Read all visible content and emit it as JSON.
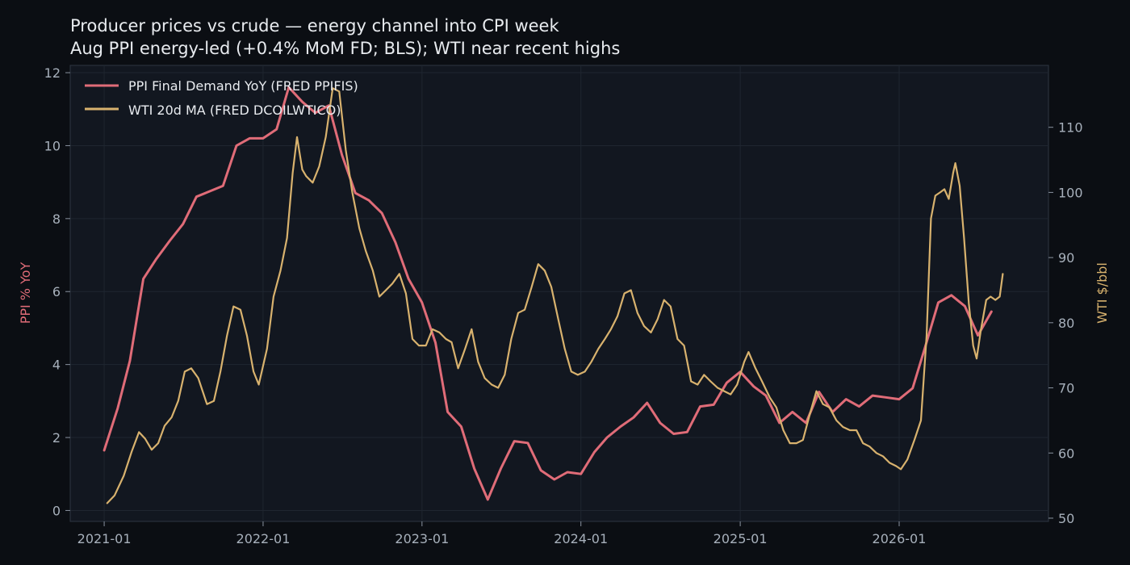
{
  "chart_data": {
    "type": "line",
    "title": "Producer prices vs crude — energy channel into CPI week",
    "subtitle": "Aug PPI energy-led (+0.4% MoM FD; BLS); WTI near recent highs",
    "x_axis": {
      "type": "date",
      "range": [
        "2020-10-15",
        "2026-12-10"
      ],
      "ticks": [
        "2021-01",
        "2022-01",
        "2023-01",
        "2024-01",
        "2025-01",
        "2026-01"
      ]
    },
    "y_left": {
      "label": "PPI % YoY",
      "range": [
        -0.3,
        12.2
      ],
      "ticks": [
        0,
        2,
        4,
        6,
        8,
        10,
        12
      ]
    },
    "y_right": {
      "label": "WTI $/bbl",
      "range": [
        49.5,
        119.5
      ],
      "ticks": [
        50,
        60,
        70,
        80,
        90,
        100,
        110
      ]
    },
    "grid": true,
    "legend_position": "top-left",
    "series": [
      {
        "name": "PPI Final Demand YoY (FRED PPIFIS)",
        "axis": "left",
        "color": "#e06c78",
        "points": [
          [
            "2021-01-01",
            1.65
          ],
          [
            "2021-02-01",
            2.8
          ],
          [
            "2021-03-01",
            4.1
          ],
          [
            "2021-04-01",
            6.35
          ],
          [
            "2021-05-01",
            6.9
          ],
          [
            "2021-06-01",
            7.4
          ],
          [
            "2021-07-01",
            7.85
          ],
          [
            "2021-08-01",
            8.6
          ],
          [
            "2021-09-01",
            8.75
          ],
          [
            "2021-10-01",
            8.9
          ],
          [
            "2021-11-01",
            10.0
          ],
          [
            "2021-12-01",
            10.2
          ],
          [
            "2022-01-01",
            10.2
          ],
          [
            "2022-02-01",
            10.45
          ],
          [
            "2022-03-01",
            11.6
          ],
          [
            "2022-04-01",
            11.2
          ],
          [
            "2022-05-01",
            10.9
          ],
          [
            "2022-06-01",
            11.1
          ],
          [
            "2022-07-01",
            9.75
          ],
          [
            "2022-08-01",
            8.7
          ],
          [
            "2022-09-01",
            8.5
          ],
          [
            "2022-10-01",
            8.15
          ],
          [
            "2022-11-01",
            7.35
          ],
          [
            "2022-12-01",
            6.35
          ],
          [
            "2023-01-01",
            5.7
          ],
          [
            "2023-02-01",
            4.6
          ],
          [
            "2023-03-01",
            2.7
          ],
          [
            "2023-04-01",
            2.3
          ],
          [
            "2023-05-01",
            1.15
          ],
          [
            "2023-06-01",
            0.3
          ],
          [
            "2023-07-01",
            1.15
          ],
          [
            "2023-08-01",
            1.9
          ],
          [
            "2023-09-01",
            1.85
          ],
          [
            "2023-10-01",
            1.1
          ],
          [
            "2023-11-01",
            0.85
          ],
          [
            "2023-12-01",
            1.05
          ],
          [
            "2024-01-01",
            1.0
          ],
          [
            "2024-02-01",
            1.6
          ],
          [
            "2024-03-01",
            2.0
          ],
          [
            "2024-04-01",
            2.3
          ],
          [
            "2024-05-01",
            2.55
          ],
          [
            "2024-06-01",
            2.95
          ],
          [
            "2024-07-01",
            2.4
          ],
          [
            "2024-08-01",
            2.1
          ],
          [
            "2024-09-01",
            2.15
          ],
          [
            "2024-10-01",
            2.85
          ],
          [
            "2024-11-01",
            2.9
          ],
          [
            "2024-12-01",
            3.5
          ],
          [
            "2025-01-01",
            3.8
          ],
          [
            "2025-02-01",
            3.4
          ],
          [
            "2025-03-01",
            3.15
          ],
          [
            "2025-04-01",
            2.4
          ],
          [
            "2025-05-01",
            2.7
          ],
          [
            "2025-06-01",
            2.4
          ],
          [
            "2025-07-01",
            3.25
          ],
          [
            "2025-08-01",
            2.7
          ],
          [
            "2025-09-01",
            3.05
          ],
          [
            "2025-10-01",
            2.85
          ],
          [
            "2025-11-01",
            3.15
          ],
          [
            "2025-12-01",
            3.1
          ],
          [
            "2026-01-01",
            3.05
          ],
          [
            "2026-02-01",
            3.35
          ],
          [
            "2026-03-01",
            4.45
          ],
          [
            "2026-04-01",
            5.7
          ],
          [
            "2026-05-01",
            5.9
          ],
          [
            "2026-06-01",
            5.6
          ],
          [
            "2026-07-01",
            4.8
          ],
          [
            "2026-08-01",
            5.45
          ]
        ]
      },
      {
        "name": "WTI 20d MA (FRED DCOILWTICO)",
        "axis": "right",
        "color": "#d8b26e",
        "points": [
          [
            "2021-01-08",
            52.3
          ],
          [
            "2021-01-25",
            53.5
          ],
          [
            "2021-02-15",
            56.5
          ],
          [
            "2021-03-05",
            60.2
          ],
          [
            "2021-03-22",
            63.2
          ],
          [
            "2021-04-05",
            62.2
          ],
          [
            "2021-04-20",
            60.5
          ],
          [
            "2021-05-05",
            61.5
          ],
          [
            "2021-05-20",
            64.2
          ],
          [
            "2021-06-05",
            65.5
          ],
          [
            "2021-06-20",
            68.0
          ],
          [
            "2021-07-05",
            72.5
          ],
          [
            "2021-07-20",
            73.0
          ],
          [
            "2021-08-05",
            71.5
          ],
          [
            "2021-08-25",
            67.5
          ],
          [
            "2021-09-10",
            68.0
          ],
          [
            "2021-09-25",
            72.5
          ],
          [
            "2021-10-10",
            78.0
          ],
          [
            "2021-10-25",
            82.5
          ],
          [
            "2021-11-10",
            82.0
          ],
          [
            "2021-11-25",
            78.0
          ],
          [
            "2021-12-10",
            72.5
          ],
          [
            "2021-12-22",
            70.5
          ],
          [
            "2022-01-10",
            76.0
          ],
          [
            "2022-01-25",
            84.0
          ],
          [
            "2022-02-10",
            88.0
          ],
          [
            "2022-02-25",
            93.0
          ],
          [
            "2022-03-10",
            103.0
          ],
          [
            "2022-03-20",
            108.5
          ],
          [
            "2022-04-01",
            103.5
          ],
          [
            "2022-04-10",
            102.5
          ],
          [
            "2022-04-25",
            101.5
          ],
          [
            "2022-05-10",
            104.0
          ],
          [
            "2022-05-25",
            108.5
          ],
          [
            "2022-06-10",
            116.0
          ],
          [
            "2022-06-25",
            115.5
          ],
          [
            "2022-07-10",
            106.5
          ],
          [
            "2022-07-25",
            100.0
          ],
          [
            "2022-08-10",
            94.5
          ],
          [
            "2022-08-25",
            91.0
          ],
          [
            "2022-09-10",
            88.0
          ],
          [
            "2022-09-25",
            84.0
          ],
          [
            "2022-10-10",
            85.0
          ],
          [
            "2022-10-25",
            86.0
          ],
          [
            "2022-11-10",
            87.5
          ],
          [
            "2022-11-25",
            84.5
          ],
          [
            "2022-12-10",
            77.5
          ],
          [
            "2022-12-25",
            76.5
          ],
          [
            "2023-01-10",
            76.5
          ],
          [
            "2023-01-25",
            79.0
          ],
          [
            "2023-02-10",
            78.5
          ],
          [
            "2023-02-25",
            77.5
          ],
          [
            "2023-03-10",
            77.0
          ],
          [
            "2023-03-25",
            73.0
          ],
          [
            "2023-04-10",
            76.0
          ],
          [
            "2023-04-25",
            79.0
          ],
          [
            "2023-05-10",
            74.0
          ],
          [
            "2023-05-25",
            71.5
          ],
          [
            "2023-06-10",
            70.5
          ],
          [
            "2023-06-25",
            70.0
          ],
          [
            "2023-07-10",
            72.0
          ],
          [
            "2023-07-25",
            77.5
          ],
          [
            "2023-08-10",
            81.5
          ],
          [
            "2023-08-25",
            82.0
          ],
          [
            "2023-09-10",
            85.5
          ],
          [
            "2023-09-25",
            89.0
          ],
          [
            "2023-10-10",
            88.0
          ],
          [
            "2023-10-25",
            85.5
          ],
          [
            "2023-11-10",
            80.5
          ],
          [
            "2023-11-25",
            76.0
          ],
          [
            "2023-12-10",
            72.5
          ],
          [
            "2023-12-25",
            72.0
          ],
          [
            "2024-01-10",
            72.5
          ],
          [
            "2024-01-25",
            74.0
          ],
          [
            "2024-02-10",
            76.0
          ],
          [
            "2024-02-25",
            77.5
          ],
          [
            "2024-03-10",
            79.0
          ],
          [
            "2024-03-25",
            81.0
          ],
          [
            "2024-04-10",
            84.5
          ],
          [
            "2024-04-25",
            85.0
          ],
          [
            "2024-05-10",
            81.5
          ],
          [
            "2024-05-25",
            79.5
          ],
          [
            "2024-06-10",
            78.5
          ],
          [
            "2024-06-25",
            80.5
          ],
          [
            "2024-07-10",
            83.5
          ],
          [
            "2024-07-25",
            82.5
          ],
          [
            "2024-08-10",
            77.5
          ],
          [
            "2024-08-25",
            76.5
          ],
          [
            "2024-09-10",
            71.0
          ],
          [
            "2024-09-25",
            70.5
          ],
          [
            "2024-10-10",
            72.0
          ],
          [
            "2024-10-25",
            71.0
          ],
          [
            "2024-11-10",
            70.0
          ],
          [
            "2024-11-25",
            69.5
          ],
          [
            "2024-12-10",
            69.0
          ],
          [
            "2024-12-25",
            70.5
          ],
          [
            "2025-01-10",
            74.0
          ],
          [
            "2025-01-20",
            75.5
          ],
          [
            "2025-02-05",
            73.0
          ],
          [
            "2025-02-20",
            71.0
          ],
          [
            "2025-03-10",
            68.5
          ],
          [
            "2025-03-25",
            67.0
          ],
          [
            "2025-04-10",
            63.5
          ],
          [
            "2025-04-25",
            61.5
          ],
          [
            "2025-05-10",
            61.5
          ],
          [
            "2025-05-25",
            62.0
          ],
          [
            "2025-06-10",
            66.0
          ],
          [
            "2025-06-25",
            69.5
          ],
          [
            "2025-07-10",
            67.5
          ],
          [
            "2025-07-25",
            67.0
          ],
          [
            "2025-08-10",
            65.0
          ],
          [
            "2025-08-25",
            64.0
          ],
          [
            "2025-09-10",
            63.5
          ],
          [
            "2025-09-25",
            63.5
          ],
          [
            "2025-10-10",
            61.5
          ],
          [
            "2025-10-25",
            61.0
          ],
          [
            "2025-11-10",
            60.0
          ],
          [
            "2025-11-25",
            59.5
          ],
          [
            "2025-12-10",
            58.5
          ],
          [
            "2025-12-25",
            58.0
          ],
          [
            "2026-01-05",
            57.5
          ],
          [
            "2026-01-20",
            59.0
          ],
          [
            "2026-02-05",
            62.0
          ],
          [
            "2026-02-20",
            65.0
          ],
          [
            "2026-03-05",
            78.0
          ],
          [
            "2026-03-15",
            96.0
          ],
          [
            "2026-03-25",
            99.5
          ],
          [
            "2026-04-05",
            100.0
          ],
          [
            "2026-04-15",
            100.5
          ],
          [
            "2026-04-25",
            99.0
          ],
          [
            "2026-05-05",
            103.0
          ],
          [
            "2026-05-10",
            104.5
          ],
          [
            "2026-05-20",
            101.0
          ],
          [
            "2026-05-30",
            93.0
          ],
          [
            "2026-06-10",
            83.0
          ],
          [
            "2026-06-20",
            76.5
          ],
          [
            "2026-06-28",
            74.5
          ],
          [
            "2026-07-08",
            79.0
          ],
          [
            "2026-07-20",
            83.5
          ],
          [
            "2026-07-30",
            84.0
          ],
          [
            "2026-08-10",
            83.5
          ],
          [
            "2026-08-20",
            84.0
          ],
          [
            "2026-08-27",
            87.5
          ]
        ]
      }
    ]
  }
}
